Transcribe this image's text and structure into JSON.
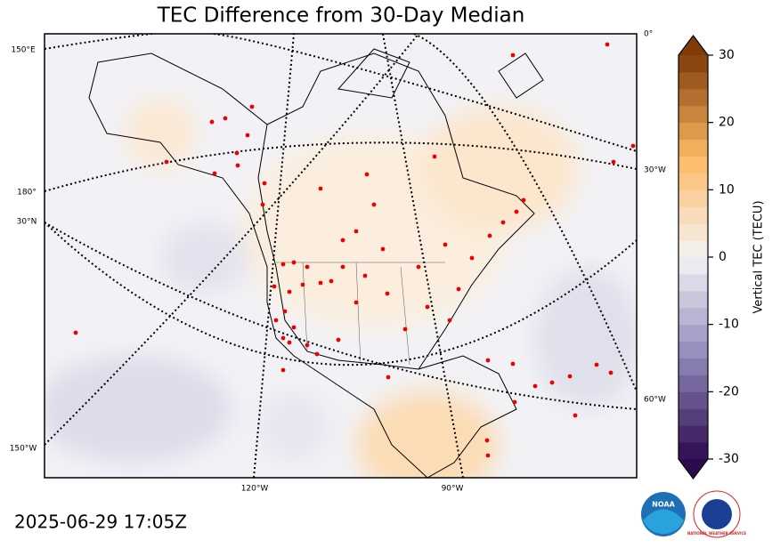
{
  "title": "TEC Difference from 30-Day Median",
  "timestamp": "2025-06-29 17:05Z",
  "graticule_labels": [
    "150°E",
    "180°",
    "30°N",
    "150°W",
    "0°",
    "30°W",
    "60°W",
    "120°W",
    "90°W"
  ],
  "colorbar": {
    "label": "Vertical TEC (TECU)",
    "lim": [
      -30,
      30
    ],
    "ticks": [
      -30,
      -20,
      -10,
      0,
      10,
      20,
      30
    ],
    "colors": [
      "#2d0a4e",
      "#8e86b8",
      "#f4f4f6",
      "#fdb863",
      "#7f3b08"
    ]
  },
  "logos": [
    "NOAA",
    "NATIONAL WEATHER SERVICE"
  ]
}
